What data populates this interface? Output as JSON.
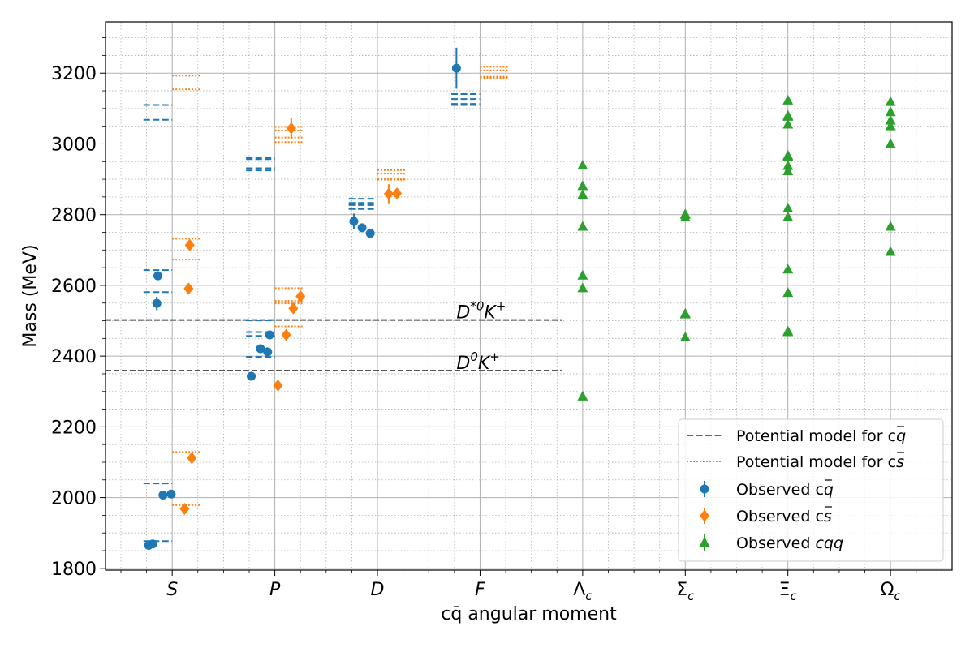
{
  "chart_data": {
    "type": "scatter",
    "xlabel": "cq̄ angular moment",
    "ylabel": "Mass (MeV)",
    "ylim": [
      1795,
      3345
    ],
    "yticks": [
      1800,
      2000,
      2200,
      2400,
      2600,
      2800,
      3000,
      3200
    ],
    "grid": true,
    "legend_position": "lower-right",
    "categories": [
      "S",
      "P",
      "D",
      "F",
      "Λc",
      "Σc",
      "Ξc",
      "Ωc"
    ],
    "category_labels": [
      {
        "main": "S",
        "sub": ""
      },
      {
        "main": "P",
        "sub": ""
      },
      {
        "main": "D",
        "sub": ""
      },
      {
        "main": "F",
        "sub": ""
      },
      {
        "main": "Λ",
        "sub": "c"
      },
      {
        "main": "Σ",
        "sub": "c"
      },
      {
        "main": "Ξ",
        "sub": "c"
      },
      {
        "main": "Ω",
        "sub": "c"
      }
    ],
    "colors": {
      "cq": "#1f77b4",
      "cs": "#ff7f0e",
      "cqq": "#2ca02c",
      "threshold": "#555555"
    },
    "thresholds": [
      {
        "label": "D*0K+",
        "mass": 2502,
        "label_main": "D",
        "label_sup": "*0",
        "label_main2": "K",
        "label_sup2": "+"
      },
      {
        "label": "D0K+",
        "mass": 2359,
        "label_main": "D",
        "label_sup": "0",
        "label_main2": "K",
        "label_sup2": "+"
      }
    ],
    "series": [
      {
        "name": "Potential model for cq̄",
        "legend_main": "Potential model for c",
        "legend_q": "q",
        "style": "dashed",
        "levels": [
          {
            "cat": 0,
            "mass": 1877
          },
          {
            "cat": 0,
            "mass": 2040
          },
          {
            "cat": 0,
            "mass": 2581
          },
          {
            "cat": 0,
            "mass": 2643
          },
          {
            "cat": 0,
            "mass": 3068
          },
          {
            "cat": 0,
            "mass": 3110
          },
          {
            "cat": 1,
            "mass": 2398
          },
          {
            "cat": 1,
            "mass": 2457
          },
          {
            "cat": 1,
            "mass": 2468
          },
          {
            "cat": 1,
            "mass": 2501
          },
          {
            "cat": 1,
            "mass": 2925
          },
          {
            "cat": 1,
            "mass": 2931
          },
          {
            "cat": 1,
            "mass": 2957
          },
          {
            "cat": 1,
            "mass": 2961
          },
          {
            "cat": 2,
            "mass": 2816
          },
          {
            "cat": 2,
            "mass": 2827
          },
          {
            "cat": 2,
            "mass": 2833
          },
          {
            "cat": 2,
            "mass": 2845
          },
          {
            "cat": 3,
            "mass": 3110
          },
          {
            "cat": 3,
            "mass": 3113
          },
          {
            "cat": 3,
            "mass": 3127
          },
          {
            "cat": 3,
            "mass": 3141
          }
        ]
      },
      {
        "name": "Potential model for cs̄",
        "legend_main": "Potential model for c",
        "legend_q": "s",
        "style": "dotted",
        "levels": [
          {
            "cat": 0,
            "mass": 1979
          },
          {
            "cat": 0,
            "mass": 2129
          },
          {
            "cat": 0,
            "mass": 2673
          },
          {
            "cat": 0,
            "mass": 2732
          },
          {
            "cat": 0,
            "mass": 3154
          },
          {
            "cat": 0,
            "mass": 3193
          },
          {
            "cat": 1,
            "mass": 2484
          },
          {
            "cat": 1,
            "mass": 2549
          },
          {
            "cat": 1,
            "mass": 2556
          },
          {
            "cat": 1,
            "mass": 2592
          },
          {
            "cat": 1,
            "mass": 3005
          },
          {
            "cat": 1,
            "mass": 3018
          },
          {
            "cat": 1,
            "mass": 3038
          },
          {
            "cat": 1,
            "mass": 3048
          },
          {
            "cat": 2,
            "mass": 2899
          },
          {
            "cat": 2,
            "mass": 2900
          },
          {
            "cat": 2,
            "mass": 2916
          },
          {
            "cat": 2,
            "mass": 2926
          },
          {
            "cat": 3,
            "mass": 3186
          },
          {
            "cat": 3,
            "mass": 3190
          },
          {
            "cat": 3,
            "mass": 3208
          },
          {
            "cat": 3,
            "mass": 3218
          }
        ]
      },
      {
        "name": "Observed cq̄",
        "legend_main": "Observed c",
        "legend_q": "q",
        "marker": "circle",
        "points": [
          {
            "x": 0.77,
            "mass": 1865,
            "err": 0
          },
          {
            "x": 0.81,
            "mass": 1869,
            "err": 0
          },
          {
            "x": 0.91,
            "mass": 2007,
            "err": 0
          },
          {
            "x": 0.99,
            "mass": 2010,
            "err": 0
          },
          {
            "x": 0.85,
            "mass": 2549,
            "err": 19
          },
          {
            "x": 0.86,
            "mass": 2627,
            "err": 0
          },
          {
            "x": 1.77,
            "mass": 2343,
            "err": 0
          },
          {
            "x": 1.86,
            "mass": 2421,
            "err": 0
          },
          {
            "x": 1.93,
            "mass": 2412,
            "err": 0
          },
          {
            "x": 1.95,
            "mass": 2460,
            "err": 0
          },
          {
            "x": 2.77,
            "mass": 2781,
            "err": 22
          },
          {
            "x": 2.85,
            "mass": 2763,
            "err": 0
          },
          {
            "x": 2.93,
            "mass": 2747,
            "err": 0
          },
          {
            "x": 3.77,
            "mass": 3214,
            "err": 58
          }
        ]
      },
      {
        "name": "Observed cs̄",
        "legend_main": "Observed c",
        "legend_q": "s",
        "marker": "diamond",
        "points": [
          {
            "x": 1.12,
            "mass": 1968,
            "err": 0
          },
          {
            "x": 1.19,
            "mass": 2112,
            "err": 0
          },
          {
            "x": 1.16,
            "mass": 2591,
            "err": 0
          },
          {
            "x": 1.17,
            "mass": 2714,
            "err": 5
          },
          {
            "x": 2.03,
            "mass": 2317,
            "err": 0
          },
          {
            "x": 2.11,
            "mass": 2460,
            "err": 0
          },
          {
            "x": 2.18,
            "mass": 2535,
            "err": 0
          },
          {
            "x": 2.25,
            "mass": 2569,
            "err": 0
          },
          {
            "x": 2.16,
            "mass": 3044,
            "err": 30
          },
          {
            "x": 3.11,
            "mass": 2859,
            "err": 27
          },
          {
            "x": 3.19,
            "mass": 2860,
            "err": 7
          }
        ]
      },
      {
        "name": "Observed cqq",
        "legend_main": "Observed ",
        "legend_q": "cqq",
        "marker": "triangle",
        "points": [
          {
            "x": 5,
            "mass": 2286,
            "err": 0
          },
          {
            "x": 5,
            "mass": 2592,
            "err": 0
          },
          {
            "x": 5,
            "mass": 2628,
            "err": 0
          },
          {
            "x": 5,
            "mass": 2766,
            "err": 0
          },
          {
            "x": 5,
            "mass": 2856,
            "err": 0
          },
          {
            "x": 5,
            "mass": 2881,
            "err": 0
          },
          {
            "x": 5,
            "mass": 2939,
            "err": 0
          },
          {
            "x": 6,
            "mass": 2453,
            "err": 0
          },
          {
            "x": 6,
            "mass": 2518,
            "err": 0
          },
          {
            "x": 6,
            "mass": 2520,
            "err": 0
          },
          {
            "x": 6,
            "mass": 2792,
            "err": 0
          },
          {
            "x": 6,
            "mass": 2800,
            "err": 0
          },
          {
            "x": 6,
            "mass": 2801,
            "err": 0
          },
          {
            "x": 7,
            "mass": 2468,
            "err": 0
          },
          {
            "x": 7,
            "mass": 2470,
            "err": 0
          },
          {
            "x": 7,
            "mass": 2579,
            "err": 0
          },
          {
            "x": 7,
            "mass": 2645,
            "err": 0
          },
          {
            "x": 7,
            "mass": 2793,
            "err": 0
          },
          {
            "x": 7,
            "mass": 2818,
            "err": 0
          },
          {
            "x": 7,
            "mass": 2923,
            "err": 0
          },
          {
            "x": 7,
            "mass": 2938,
            "err": 0
          },
          {
            "x": 7,
            "mass": 2964,
            "err": 0
          },
          {
            "x": 7,
            "mass": 2967,
            "err": 0
          },
          {
            "x": 7,
            "mass": 3055,
            "err": 0
          },
          {
            "x": 7,
            "mass": 3077,
            "err": 0
          },
          {
            "x": 7,
            "mass": 3080,
            "err": 0
          },
          {
            "x": 7,
            "mass": 3123,
            "err": 0
          },
          {
            "x": 8,
            "mass": 2695,
            "err": 0
          },
          {
            "x": 8,
            "mass": 2766,
            "err": 0
          },
          {
            "x": 8,
            "mass": 3000,
            "err": 0
          },
          {
            "x": 8,
            "mass": 3050,
            "err": 0
          },
          {
            "x": 8,
            "mass": 3066,
            "err": 0
          },
          {
            "x": 8,
            "mass": 3090,
            "err": 0
          },
          {
            "x": 8,
            "mass": 3119,
            "err": 0
          }
        ]
      }
    ]
  }
}
